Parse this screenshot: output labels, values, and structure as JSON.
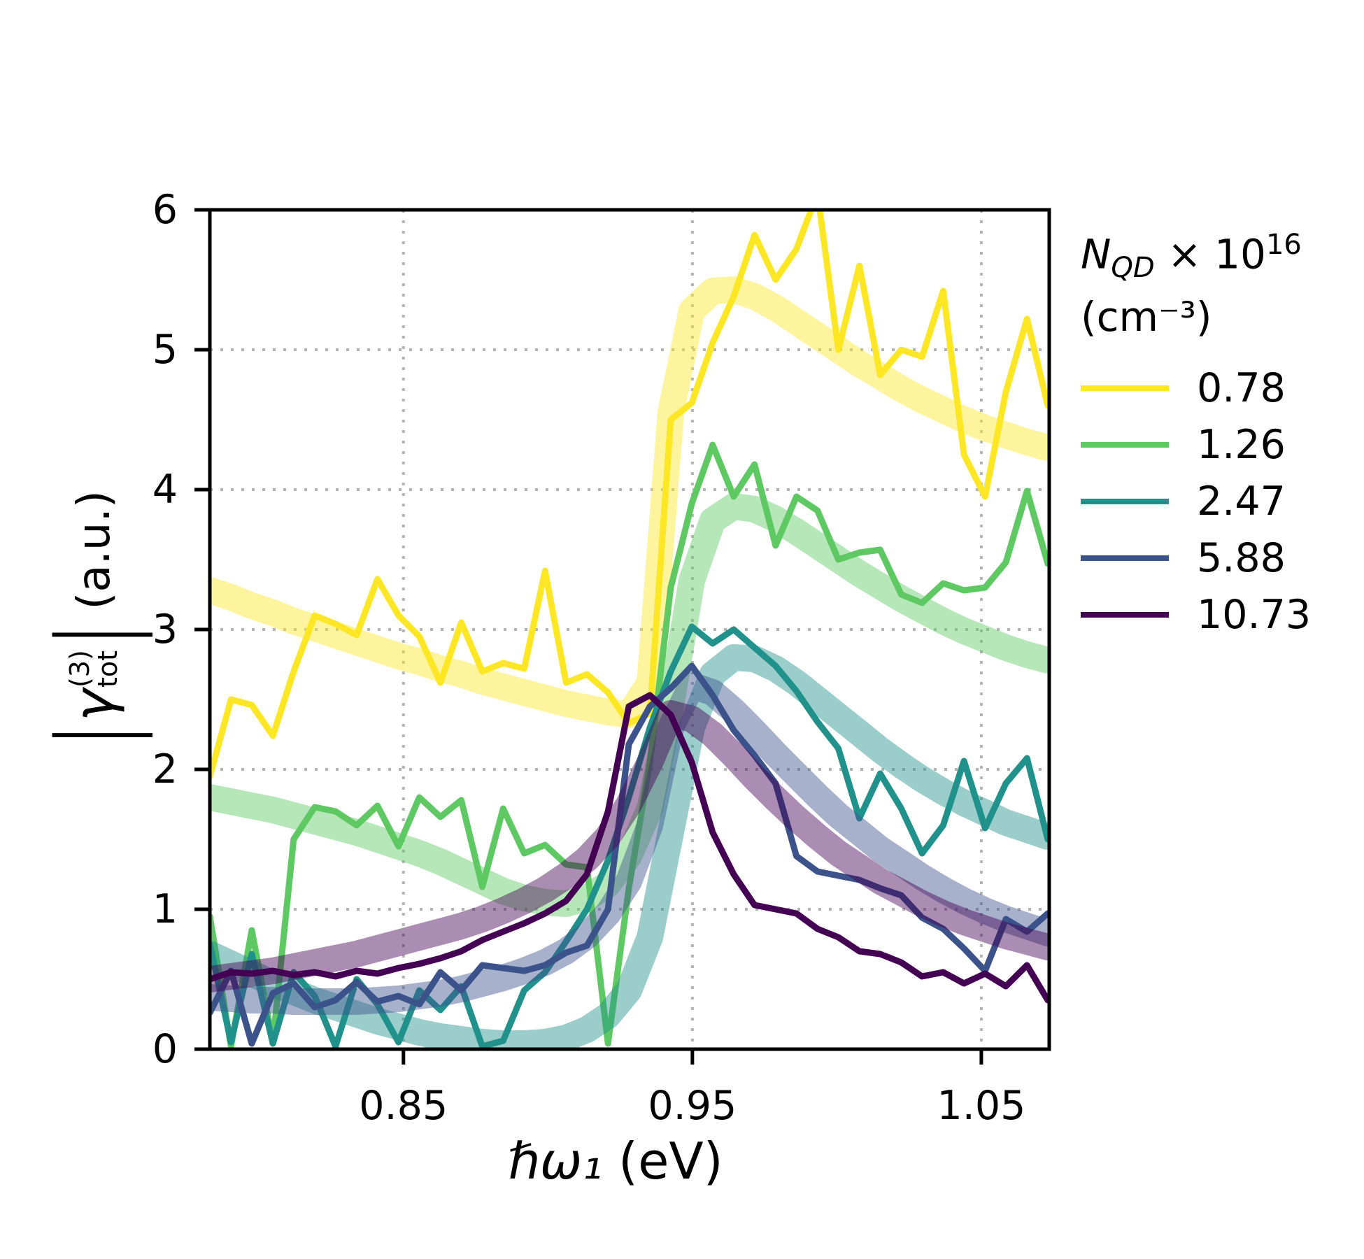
{
  "figure": {
    "background": "#ffffff",
    "axis_color": "#000000",
    "grid_color": "#b3b3b3"
  },
  "chart_data": {
    "type": "line",
    "title": "",
    "xlabel": {
      "math": "ℏω₁",
      "unit": " (eV)"
    },
    "ylabel": {
      "bar": "|",
      "gamma": "γ",
      "sup": "(3)",
      "sub": "tot",
      "unit": "(a.u.)"
    },
    "xlim": [
      0.783,
      1.0735
    ],
    "ylim": [
      0,
      6
    ],
    "xticks": [
      0.85,
      0.95,
      1.05
    ],
    "xtick_labels": [
      "0.85",
      "0.95",
      "1.05"
    ],
    "yticks": [
      0,
      1,
      2,
      3,
      4,
      5,
      6
    ],
    "ytick_labels": [
      "0",
      "1",
      "2",
      "3",
      "4",
      "5",
      "6"
    ],
    "grid": "dotted",
    "legend_position": "right",
    "band_alpha": 0.45,
    "legend": {
      "title": {
        "n": "N",
        "sub": "QD",
        "times": " × 10",
        "exp": "16"
      },
      "units": "(cm⁻³)",
      "entries": [
        {
          "label": "0.78",
          "color": "#FDE725"
        },
        {
          "label": "1.26",
          "color": "#5EC962"
        },
        {
          "label": "2.47",
          "color": "#21918C"
        },
        {
          "label": "5.88",
          "color": "#3B528B"
        },
        {
          "label": "10.73",
          "color": "#440154"
        }
      ]
    },
    "x": [
      0.783,
      0.7903,
      0.7975,
      0.8048,
      0.812,
      0.8193,
      0.8265,
      0.8338,
      0.841,
      0.8483,
      0.8555,
      0.8628,
      0.87,
      0.8773,
      0.8845,
      0.8918,
      0.899,
      0.9063,
      0.9135,
      0.9208,
      0.928,
      0.9353,
      0.9425,
      0.9498,
      0.957,
      0.9643,
      0.9715,
      0.9788,
      0.986,
      0.9933,
      1.0005,
      1.0078,
      1.015,
      1.0223,
      1.0295,
      1.0368,
      1.044,
      1.0513,
      1.0585,
      1.0658,
      1.073
    ],
    "series": [
      {
        "name": "0.78",
        "color": "#FDE725",
        "smooth": [
          3.28,
          3.23,
          3.17,
          3.12,
          3.06,
          3.01,
          2.96,
          2.91,
          2.86,
          2.81,
          2.77,
          2.72,
          2.68,
          2.63,
          2.59,
          2.55,
          2.51,
          2.47,
          2.44,
          2.41,
          2.39,
          2.62,
          4.55,
          5.28,
          5.42,
          5.43,
          5.38,
          5.3,
          5.2,
          5.1,
          5.0,
          4.9,
          4.81,
          4.72,
          4.64,
          4.57,
          4.5,
          4.44,
          4.39,
          4.34,
          4.3
        ],
        "noisy": [
          1.95,
          2.5,
          2.46,
          2.24,
          2.7,
          3.1,
          3.04,
          2.96,
          3.36,
          3.1,
          2.95,
          2.62,
          3.05,
          2.7,
          2.76,
          2.72,
          3.42,
          2.62,
          2.68,
          2.55,
          2.33,
          2.4,
          4.5,
          4.62,
          5.05,
          5.38,
          5.82,
          5.5,
          5.72,
          6.12,
          5.0,
          5.6,
          4.82,
          5.0,
          4.95,
          5.42,
          4.25,
          3.95,
          4.7,
          5.22,
          4.6
        ]
      },
      {
        "name": "1.26",
        "color": "#5EC962",
        "smooth": [
          1.8,
          1.77,
          1.74,
          1.71,
          1.67,
          1.63,
          1.59,
          1.55,
          1.5,
          1.45,
          1.4,
          1.34,
          1.27,
          1.2,
          1.13,
          1.08,
          1.05,
          1.04,
          1.08,
          1.18,
          1.38,
          1.72,
          2.45,
          3.35,
          3.78,
          3.88,
          3.86,
          3.79,
          3.7,
          3.6,
          3.5,
          3.4,
          3.31,
          3.22,
          3.14,
          3.06,
          2.99,
          2.93,
          2.87,
          2.82,
          2.78
        ],
        "noisy": [
          0.95,
          0.02,
          0.85,
          0.05,
          1.5,
          1.73,
          1.7,
          1.6,
          1.74,
          1.45,
          1.8,
          1.66,
          1.78,
          1.16,
          1.72,
          1.4,
          1.46,
          1.32,
          1.3,
          0.04,
          1.15,
          2.05,
          3.3,
          3.9,
          4.32,
          3.95,
          4.18,
          3.6,
          3.95,
          3.85,
          3.5,
          3.55,
          3.57,
          3.25,
          3.19,
          3.33,
          3.28,
          3.3,
          3.48,
          3.99,
          3.47
        ]
      },
      {
        "name": "2.47",
        "color": "#21918C",
        "smooth": [
          0.68,
          0.61,
          0.54,
          0.47,
          0.41,
          0.35,
          0.3,
          0.25,
          0.2,
          0.16,
          0.12,
          0.09,
          0.07,
          0.05,
          0.04,
          0.04,
          0.05,
          0.08,
          0.14,
          0.24,
          0.42,
          0.8,
          1.55,
          2.3,
          2.68,
          2.8,
          2.79,
          2.72,
          2.62,
          2.5,
          2.38,
          2.26,
          2.14,
          2.03,
          1.93,
          1.84,
          1.76,
          1.69,
          1.62,
          1.57,
          1.52
        ],
        "noisy": [
          0.75,
          0.05,
          0.68,
          0.04,
          0.55,
          0.38,
          0.02,
          0.5,
          0.32,
          0.05,
          0.42,
          0.28,
          0.45,
          0.02,
          0.06,
          0.42,
          0.55,
          0.77,
          1.0,
          1.35,
          1.8,
          2.3,
          2.7,
          3.02,
          2.9,
          3.0,
          2.87,
          2.74,
          2.56,
          2.34,
          2.15,
          1.65,
          1.97,
          1.72,
          1.4,
          1.6,
          2.06,
          1.58,
          1.9,
          2.08,
          1.5
        ]
      },
      {
        "name": "5.88",
        "color": "#3B528B",
        "smooth": [
          0.37,
          0.36,
          0.35,
          0.35,
          0.34,
          0.34,
          0.34,
          0.34,
          0.35,
          0.36,
          0.38,
          0.4,
          0.43,
          0.47,
          0.51,
          0.56,
          0.62,
          0.7,
          0.81,
          0.97,
          1.2,
          1.6,
          2.3,
          2.6,
          2.55,
          2.42,
          2.27,
          2.11,
          1.96,
          1.81,
          1.67,
          1.55,
          1.43,
          1.33,
          1.23,
          1.14,
          1.06,
          0.99,
          0.93,
          0.88,
          0.83
        ],
        "noisy": [
          0.26,
          0.56,
          0.04,
          0.4,
          0.47,
          0.3,
          0.35,
          0.48,
          0.34,
          0.38,
          0.32,
          0.55,
          0.42,
          0.6,
          0.58,
          0.56,
          0.6,
          0.69,
          0.74,
          1.0,
          2.18,
          2.45,
          2.58,
          2.74,
          2.53,
          2.28,
          2.1,
          1.9,
          1.38,
          1.27,
          1.24,
          1.21,
          1.15,
          1.1,
          0.94,
          0.86,
          0.72,
          0.56,
          0.93,
          0.84,
          0.97
        ]
      },
      {
        "name": "10.73",
        "color": "#440154",
        "smooth": [
          0.5,
          0.52,
          0.54,
          0.56,
          0.59,
          0.62,
          0.65,
          0.68,
          0.72,
          0.76,
          0.8,
          0.84,
          0.88,
          0.93,
          0.99,
          1.06,
          1.14,
          1.24,
          1.36,
          1.52,
          1.75,
          2.05,
          2.4,
          2.36,
          2.25,
          2.1,
          1.94,
          1.79,
          1.65,
          1.52,
          1.4,
          1.3,
          1.2,
          1.12,
          1.04,
          0.97,
          0.91,
          0.86,
          0.81,
          0.77,
          0.73
        ],
        "noisy": [
          0.5,
          0.55,
          0.54,
          0.56,
          0.53,
          0.55,
          0.52,
          0.56,
          0.54,
          0.58,
          0.61,
          0.65,
          0.7,
          0.78,
          0.84,
          0.9,
          0.97,
          1.06,
          1.25,
          1.7,
          2.45,
          2.53,
          2.39,
          2.05,
          1.55,
          1.25,
          1.03,
          1.0,
          0.97,
          0.86,
          0.8,
          0.7,
          0.68,
          0.62,
          0.52,
          0.55,
          0.47,
          0.54,
          0.45,
          0.6,
          0.35
        ]
      }
    ]
  }
}
